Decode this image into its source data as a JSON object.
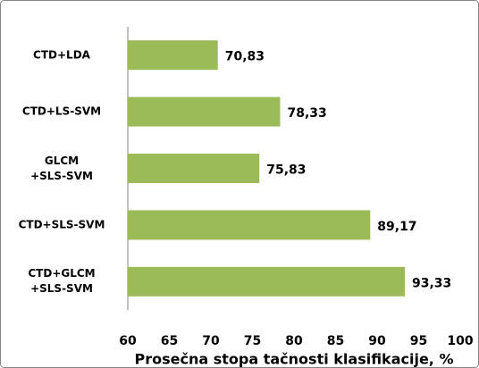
{
  "chart_data": {
    "type": "bar",
    "orientation": "horizontal",
    "categories": [
      "CTD+LDA",
      "CTD+LS-SVM",
      "GLCM\n+SLS-SVM",
      "CTD+SLS-SVM",
      "CTD+GLCM\n+SLS-SVM"
    ],
    "values": [
      70.83,
      78.33,
      75.83,
      89.17,
      93.33
    ],
    "value_labels": [
      "70,83",
      "78,33",
      "75,83",
      "89,17",
      "93,33"
    ],
    "color": "#9bbb59",
    "x_label": "Prosečna stopa tačnosti klasifikacije, %",
    "xlim": [
      60,
      100
    ],
    "xticks": [
      60,
      65,
      70,
      75,
      80,
      85,
      90,
      95,
      100
    ],
    "grid": false
  }
}
